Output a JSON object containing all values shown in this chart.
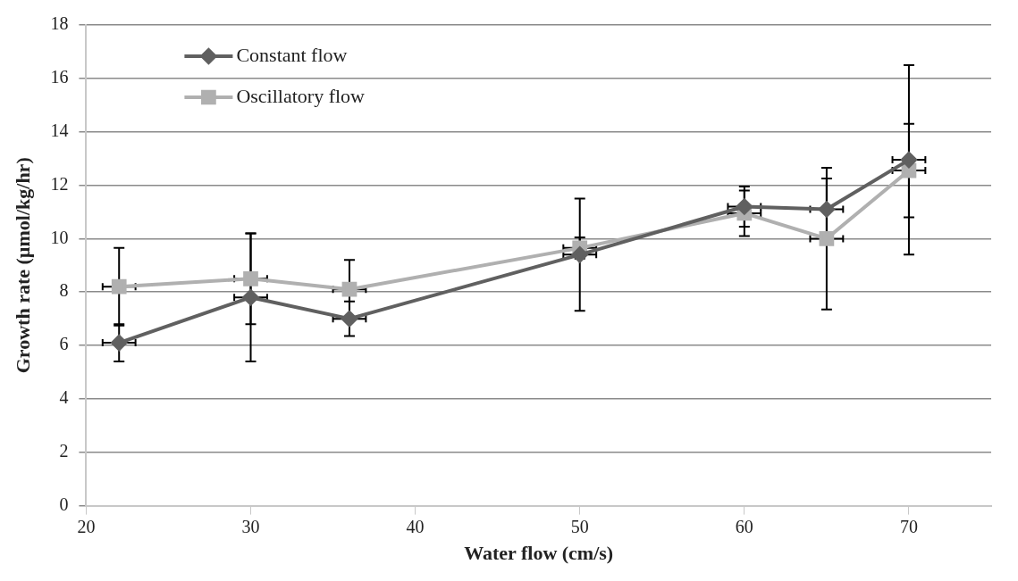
{
  "chart_data": {
    "type": "line",
    "xlabel": "Water flow (cm/s)",
    "ylabel": "Growth rate (µmol/kg/hr)",
    "x": [
      22,
      30,
      36,
      50,
      60,
      65,
      70
    ],
    "series": [
      {
        "name": "Constant flow",
        "color": "#606060",
        "marker": "diamond",
        "values": [
          6.1,
          7.8,
          7.0,
          9.4,
          11.2,
          11.1,
          12.95
        ],
        "errors": [
          0.7,
          2.4,
          0.65,
          2.1,
          0.75,
          1.15,
          3.55
        ],
        "xerrors": [
          1,
          1,
          1,
          1,
          1,
          1,
          1
        ]
      },
      {
        "name": "Oscillatory flow",
        "color": "#b0b0b0",
        "marker": "square",
        "values": [
          8.2,
          8.5,
          8.1,
          9.65,
          10.95,
          10.0,
          12.55
        ],
        "errors": [
          1.45,
          1.7,
          1.1,
          0.4,
          0.85,
          2.65,
          1.75
        ],
        "xerrors": [
          1,
          1,
          1,
          1,
          1,
          1,
          1
        ]
      }
    ],
    "xlim": [
      20,
      75
    ],
    "xticks": [
      20,
      30,
      40,
      50,
      60,
      70
    ],
    "ylim": [
      0,
      18
    ],
    "yticks": [
      0,
      2,
      4,
      6,
      8,
      10,
      12,
      14,
      16,
      18
    ],
    "grid": "y",
    "legend": "top left",
    "line_style": "solid"
  }
}
